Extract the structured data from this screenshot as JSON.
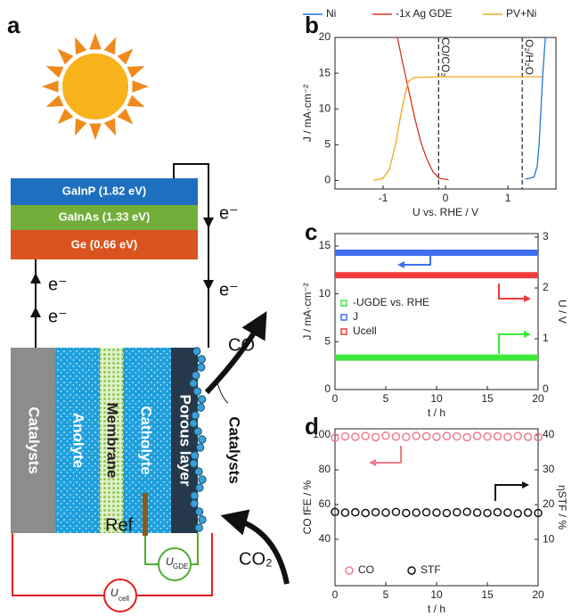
{
  "panel_labels": [
    "a",
    "b",
    "c",
    "d"
  ],
  "diagram": {
    "layers": [
      "GaInP (1.82 eV)",
      "GaInAs (1.33 eV)",
      "Ge (0.66 eV)"
    ],
    "electron_labels": [
      "e⁻",
      "e⁻",
      "e⁻",
      "e⁻"
    ],
    "components": [
      "Catalysts",
      "Anolyte",
      "Membrane",
      "Catholyte",
      "Porous layer"
    ],
    "catalysts_label": "Catalysts",
    "product": "CO",
    "reactant": "CO₂",
    "ref": "Ref",
    "u_gde": {
      "main": "U",
      "sub": "GDE"
    },
    "u_cell": {
      "main": "U",
      "sub": "cell"
    }
  },
  "chart_data": [
    {
      "type": "line",
      "xlabel": "U vs. RHE / V",
      "ylabel": "J / mA·cm⁻²",
      "xlim": [
        -1.77,
        1.77
      ],
      "xticks": [
        -1,
        0,
        1
      ],
      "ylim": [
        -1.2,
        20
      ],
      "yticks": [
        0,
        5,
        10,
        15,
        20
      ],
      "legend": "top",
      "vlines": [
        {
          "x": -0.11,
          "label": "CO/CO₂"
        },
        {
          "x": 1.23,
          "label": "O₂/H₂O"
        }
      ],
      "series": [
        {
          "name": "Ni",
          "color": "#1f78d1",
          "x": [
            1.28,
            1.35,
            1.42,
            1.47,
            1.5,
            1.53,
            1.56,
            1.6
          ],
          "values": [
            0.2,
            0.3,
            0.5,
            2,
            5,
            10,
            15,
            20
          ]
        },
        {
          "name": "-1x Ag GDE",
          "color": "#d9341f",
          "x": [
            -0.77,
            -0.7,
            -0.6,
            -0.5,
            -0.4,
            -0.3,
            -0.2,
            -0.1,
            0.05
          ],
          "values": [
            20,
            17,
            13,
            9,
            5.5,
            3,
            1.2,
            0.3,
            0.1
          ]
        },
        {
          "name": "PV+Ni",
          "color": "#f0a81e",
          "x": [
            -1.15,
            -1.0,
            -0.9,
            -0.8,
            -0.7,
            -0.6,
            -0.5,
            0,
            0.5,
            1,
            1.55
          ],
          "values": [
            0,
            0.3,
            1.5,
            5,
            10,
            13.8,
            14.4,
            14.5,
            14.5,
            14.5,
            14.5
          ]
        }
      ]
    },
    {
      "type": "line",
      "xlabel": "t / h",
      "ylabel": "J / mA·cm⁻²",
      "y2label": "U / V",
      "xlim": [
        0,
        20
      ],
      "xticks": [
        0,
        5,
        10,
        15,
        20
      ],
      "ylim": [
        0,
        16.3
      ],
      "yticks": [
        0,
        5,
        10,
        15
      ],
      "y2lim": [
        0,
        3.07
      ],
      "y2ticks": [
        0,
        1,
        2,
        3
      ],
      "legend": "center left",
      "x": [
        0,
        5,
        10,
        15,
        20
      ],
      "series": [
        {
          "name": "-UGDE vs. RHE",
          "color": "#3ee83a",
          "axis": "y2",
          "values": [
            0.63,
            0.63,
            0.63,
            0.63,
            0.63
          ]
        },
        {
          "name": "J",
          "color": "#3f6ff0",
          "values": [
            14.3,
            14.3,
            14.3,
            14.3,
            14.3
          ]
        },
        {
          "name": "Ucell",
          "color": "#f03a3a",
          "axis": "y2",
          "values": [
            2.25,
            2.25,
            2.25,
            2.25,
            2.25
          ]
        }
      ]
    },
    {
      "type": "scatter",
      "xlabel": "t / h",
      "ylabel": "CO fFE / %",
      "y2label": "ηSTF / %",
      "xlim": [
        0,
        20
      ],
      "xticks": [
        0,
        5,
        10,
        15,
        20
      ],
      "ylim": [
        13.3,
        103.6
      ],
      "yticks": [
        40,
        60,
        80,
        100
      ],
      "y2lim": [
        -3.3,
        41.8
      ],
      "y2ticks": [
        10,
        20,
        30,
        40
      ],
      "legend": "bottom left",
      "x": [
        0,
        1,
        2,
        3,
        4,
        5,
        6,
        7,
        8,
        9,
        10,
        11,
        12,
        13,
        14,
        15,
        16,
        17,
        18,
        19,
        20
      ],
      "series": [
        {
          "name": "CO",
          "color": "#f07a8a",
          "values": [
            98.5,
            99.2,
            99.0,
            99.4,
            98.8,
            99.6,
            99.1,
            98.9,
            99.5,
            99.3,
            99.0,
            99.4,
            99.2,
            98.7,
            99.5,
            99.1,
            99.3,
            98.9,
            99.4,
            99.0,
            98.8
          ]
        },
        {
          "name": "STF",
          "color": "#111111",
          "axis": "y2",
          "values": [
            17.9,
            17.7,
            17.8,
            17.6,
            17.8,
            17.7,
            17.9,
            17.6,
            17.7,
            17.8,
            17.7,
            17.6,
            17.8,
            17.9,
            17.7,
            17.6,
            17.8,
            17.7,
            17.5,
            17.7,
            17.6
          ]
        }
      ]
    }
  ]
}
